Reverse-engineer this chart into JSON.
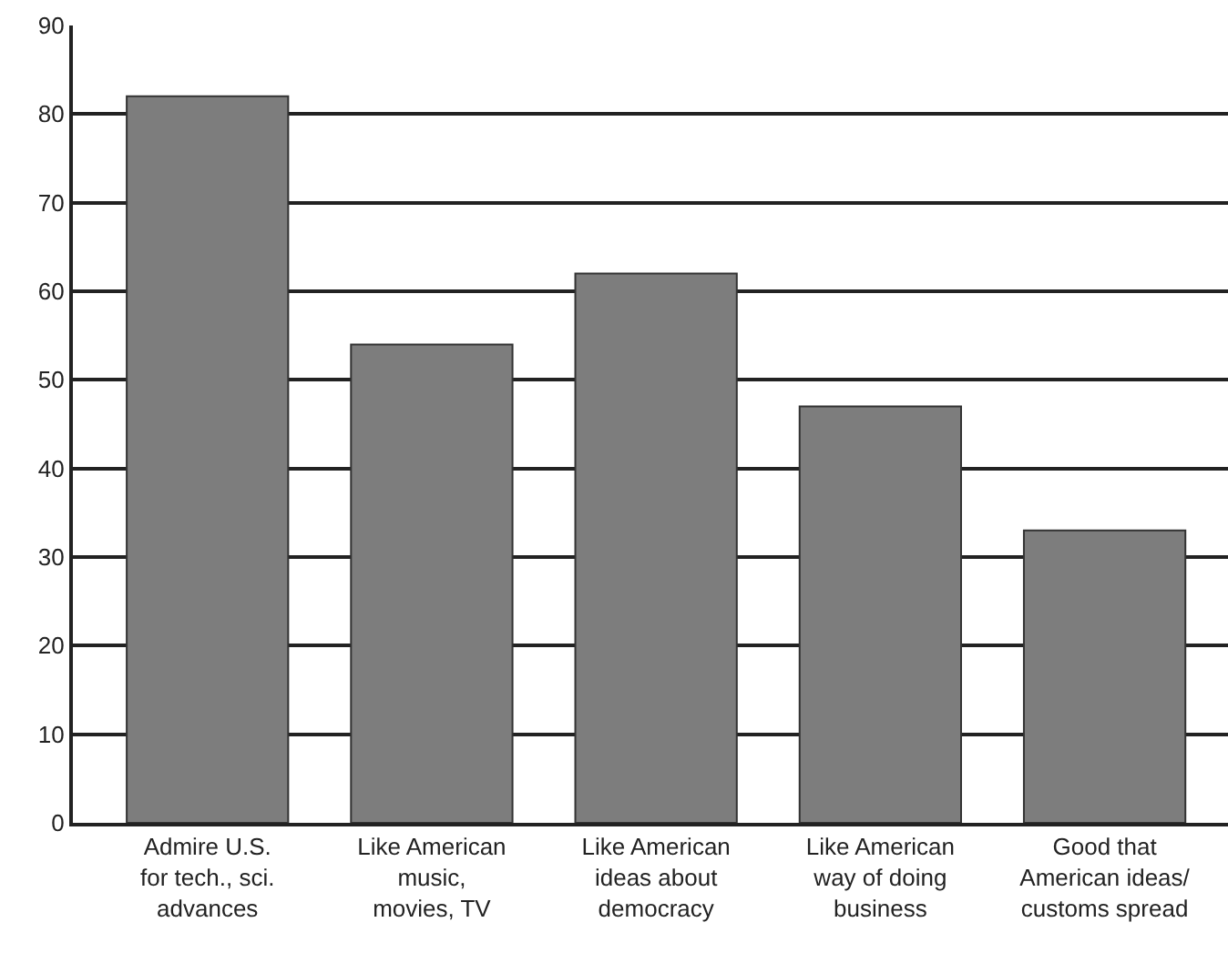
{
  "chart_data": {
    "type": "bar",
    "categories": [
      "Admire U.S.\nfor tech., sci.\nadvances",
      "Like American\nmusic,\nmovies, TV",
      "Like American\nideas about\ndemocracy",
      "Like American\nway of doing\nbusiness",
      "Good that\nAmerican ideas/\ncustoms spread"
    ],
    "values": [
      82,
      54,
      62,
      47,
      33
    ],
    "color": "#7d7d7d",
    "ylim": [
      0,
      90
    ],
    "yticks": [
      0,
      10,
      20,
      30,
      40,
      50,
      60,
      70,
      80,
      90
    ],
    "grid": "y"
  }
}
